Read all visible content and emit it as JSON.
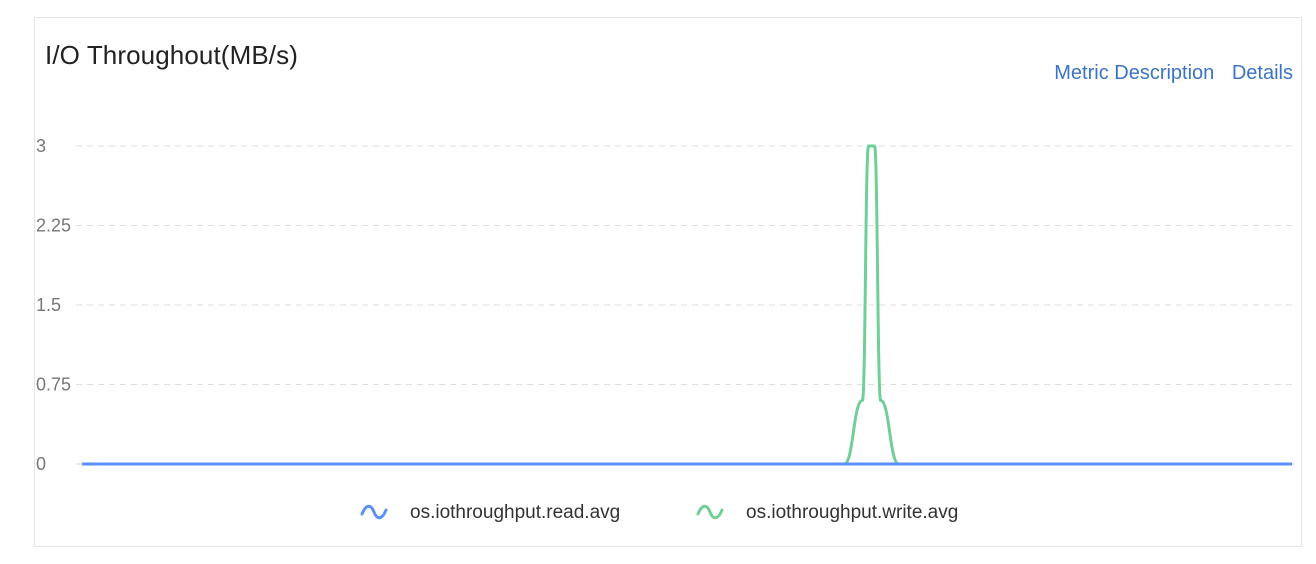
{
  "header": {
    "title": "I/O Throughout(MB/s)",
    "metric_description_label": "Metric Description",
    "details_label": "Details"
  },
  "chart_data": {
    "type": "line",
    "title": "I/O Throughout(MB/s)",
    "xlabel": "",
    "ylabel": "",
    "ylim": [
      0,
      3
    ],
    "yticks": [
      "0",
      "0.75",
      "1.5",
      "2.25",
      "3"
    ],
    "grid": "horizontal dashed",
    "legend_position": "bottom",
    "x": [
      0,
      0.63,
      0.645,
      0.65,
      0.655,
      0.66,
      0.675,
      1
    ],
    "series": [
      {
        "name": "os.iothroughput.read.avg",
        "color": "#5b8ff9",
        "values": [
          0,
          0,
          0,
          0,
          0,
          0,
          0,
          0
        ]
      },
      {
        "name": "os.iothroughput.write.avg",
        "color": "#6fcf97",
        "values": [
          0,
          0,
          0.6,
          3,
          3,
          0.6,
          0,
          0
        ]
      }
    ]
  }
}
